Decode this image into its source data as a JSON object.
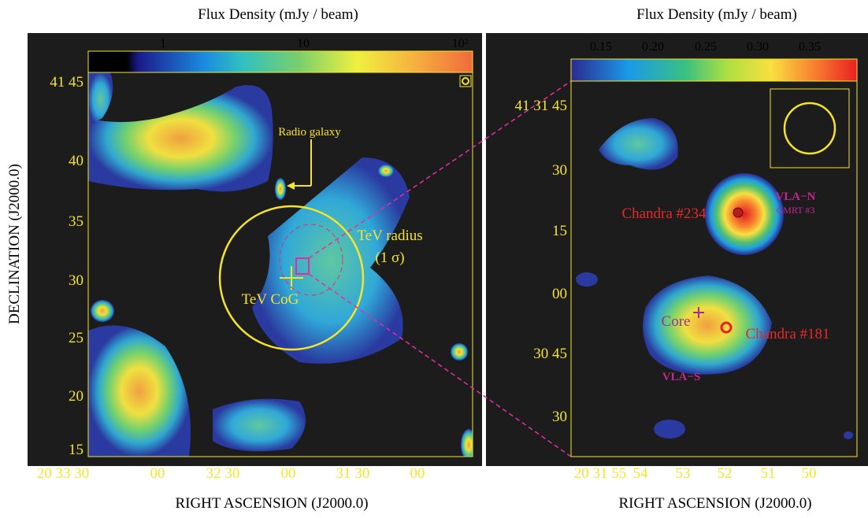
{
  "left_panel": {
    "title": "Flux Density (mJy / beam)",
    "colorbar_labels": [
      "1",
      "10",
      "10²"
    ],
    "y_ticks": [
      "41 45",
      "40",
      "35",
      "30",
      "25",
      "20",
      "15"
    ],
    "x_ticks": [
      "20 33 30",
      "00",
      "32 30",
      "00",
      "31 30",
      "00"
    ],
    "annotations": {
      "radio_galaxy": "Radio galaxy",
      "tev_radius": "TeV radius",
      "tev_sigma": "(1 σ)",
      "tev_cog": "TeV CoG"
    }
  },
  "right_panel": {
    "title": "Flux Density (mJy / beam)",
    "colorbar_labels": [
      "0.15",
      "0.20",
      "0.25",
      "0.30",
      "0.35"
    ],
    "y_ticks": [
      "41 31 45",
      "30",
      "15",
      "00",
      "30 45",
      "30"
    ],
    "x_ticks": [
      "20 31 55",
      "54",
      "53",
      "52",
      "51",
      "50"
    ],
    "annotations": {
      "chandra_234": "Chandra #234",
      "vla_n": "VLA−N",
      "gmrt_3": "GMRT #3",
      "core": "Core",
      "chandra_181": "Chandra #181",
      "vla_s": "VLA−S"
    }
  },
  "y_axis_label": "DECLINATION (J2000.0)",
  "x_axis_label_left": "RIGHT  ASCENSION (J2000.0)",
  "x_axis_label_right": "RIGHT  ASCENSION (J2000.0)"
}
